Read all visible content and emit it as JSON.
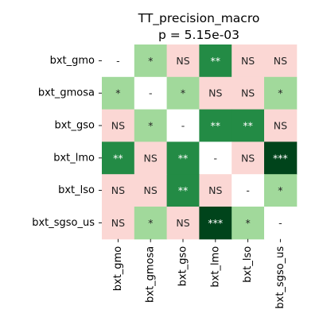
{
  "chart_data": {
    "type": "heatmap",
    "title": "TT_precision_macro",
    "subtitle": "p = 5.15e-03",
    "row_labels": [
      "bxt_gmo",
      "bxt_gmosa",
      "bxt_gso",
      "bxt_lmo",
      "bxt_lso",
      "bxt_sgso_us"
    ],
    "col_labels": [
      "bxt_gmo",
      "bxt_gmosa",
      "bxt_gso",
      "bxt_lmo",
      "bxt_lso",
      "bxt_sgso_us"
    ],
    "cells": [
      [
        "-",
        "*",
        "NS",
        "**",
        "NS",
        "NS"
      ],
      [
        "*",
        "-",
        "*",
        "NS",
        "NS",
        "*"
      ],
      [
        "NS",
        "*",
        "-",
        "**",
        "**",
        "NS"
      ],
      [
        "**",
        "NS",
        "**",
        "-",
        "NS",
        "***"
      ],
      [
        "NS",
        "NS",
        "**",
        "NS",
        "-",
        "*"
      ],
      [
        "NS",
        "*",
        "NS",
        "***",
        "*",
        "-"
      ]
    ],
    "colors": {
      "-": "#ffffff",
      "NS": "#fbd7d4",
      "*": "#a1d99b",
      "**": "#238b45",
      "***": "#00441b"
    },
    "text_colors": {
      "-": "#262626",
      "NS": "#262626",
      "*": "#262626",
      "**": "#ffffff",
      "***": "#ffffff"
    },
    "grid": false,
    "legend": "none"
  }
}
